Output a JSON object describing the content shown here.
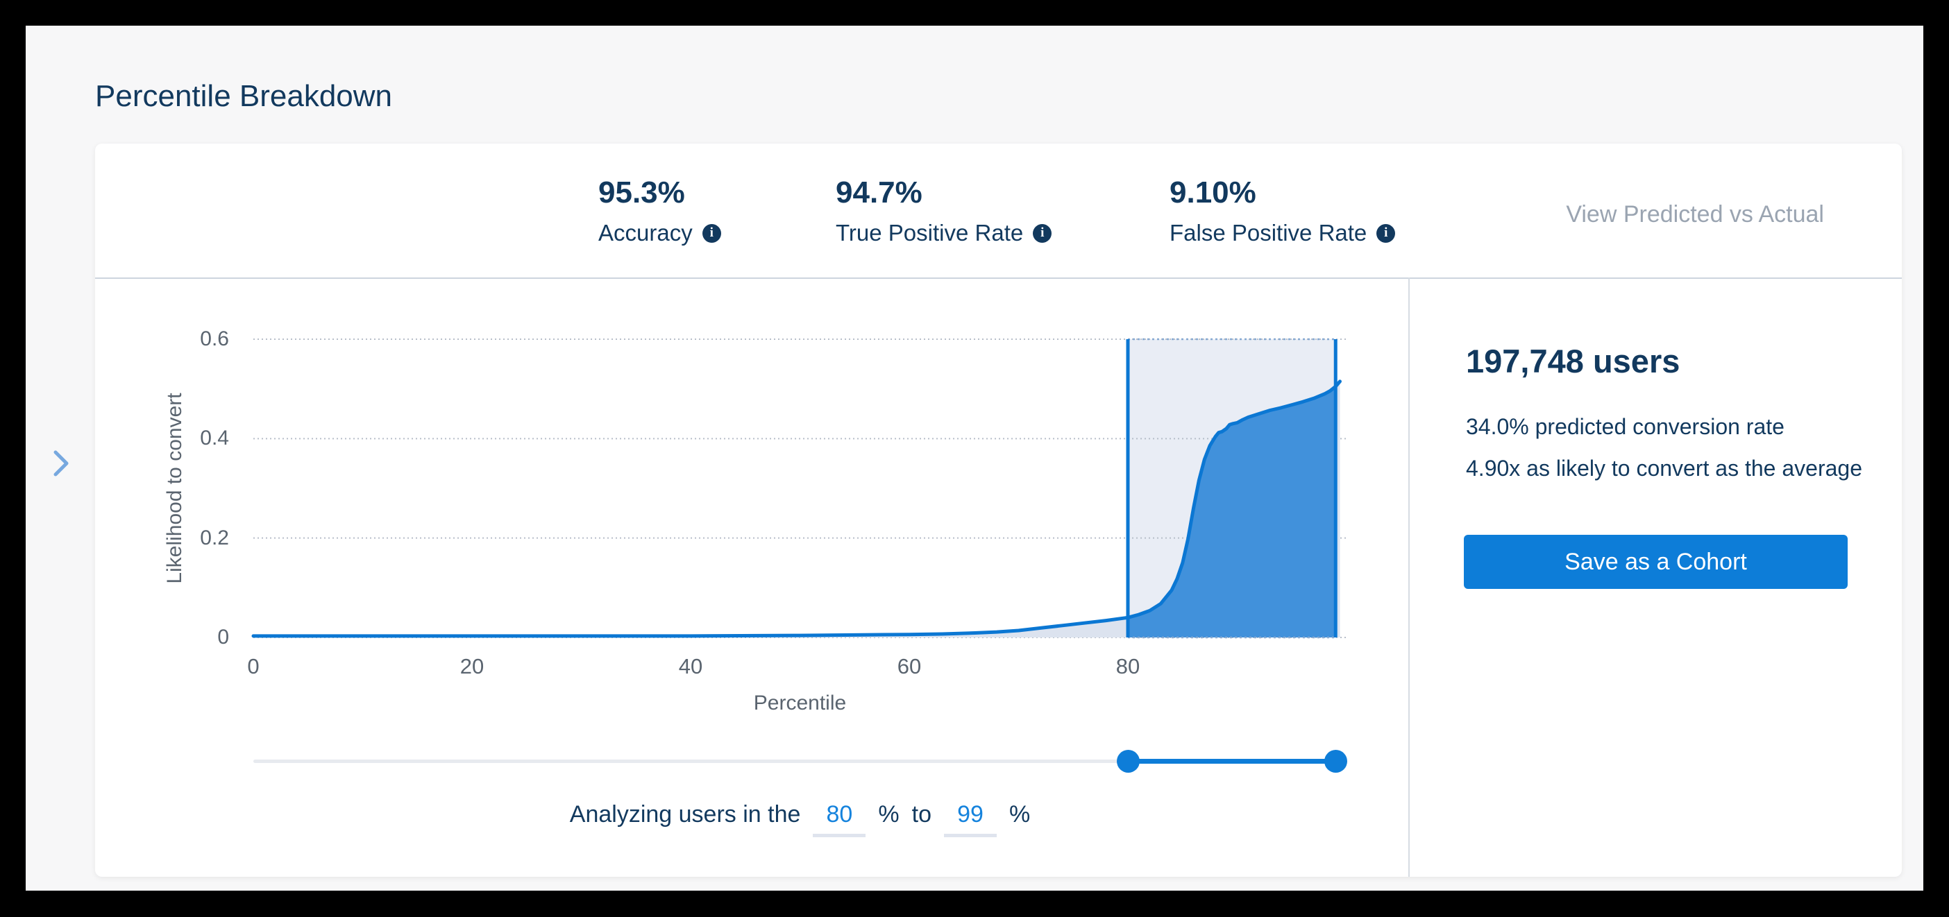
{
  "page": {
    "title": "Percentile Breakdown"
  },
  "stats": {
    "items": [
      {
        "value": "95.3%",
        "label": "Accuracy"
      },
      {
        "value": "94.7%",
        "label": "True Positive Rate"
      },
      {
        "value": "9.10%",
        "label": "False Positive Rate"
      }
    ],
    "info_glyph": "i",
    "view_link": "View Predicted vs Actual"
  },
  "chart_data": {
    "type": "area",
    "title": "",
    "xlabel": "Percentile",
    "ylabel": "Likelihood to convert",
    "xlim": [
      0,
      100
    ],
    "ylim": [
      0,
      0.6
    ],
    "x_ticks": [
      0,
      20,
      40,
      60,
      80
    ],
    "y_ticks": [
      0,
      0.2,
      0.4,
      0.6
    ],
    "grid": "dotted-horizontal",
    "selection": {
      "start": 80,
      "end": 99
    },
    "points": [
      [
        0,
        0.003
      ],
      [
        10,
        0.003
      ],
      [
        20,
        0.003
      ],
      [
        30,
        0.003
      ],
      [
        40,
        0.003
      ],
      [
        50,
        0.004
      ],
      [
        55,
        0.005
      ],
      [
        60,
        0.006
      ],
      [
        63,
        0.007
      ],
      [
        66,
        0.009
      ],
      [
        68,
        0.011
      ],
      [
        70,
        0.014
      ],
      [
        72,
        0.019
      ],
      [
        74,
        0.024
      ],
      [
        76,
        0.029
      ],
      [
        78,
        0.034
      ],
      [
        80,
        0.04
      ],
      [
        81,
        0.046
      ],
      [
        82,
        0.054
      ],
      [
        83,
        0.068
      ],
      [
        84,
        0.095
      ],
      [
        84.5,
        0.118
      ],
      [
        85,
        0.15
      ],
      [
        85.5,
        0.198
      ],
      [
        86,
        0.26
      ],
      [
        86.5,
        0.316
      ],
      [
        87,
        0.358
      ],
      [
        87.5,
        0.386
      ],
      [
        88,
        0.404
      ],
      [
        88.3,
        0.412
      ],
      [
        88.6,
        0.414
      ],
      [
        89,
        0.42
      ],
      [
        89.3,
        0.428
      ],
      [
        89.6,
        0.43
      ],
      [
        90,
        0.432
      ],
      [
        90.5,
        0.438
      ],
      [
        91,
        0.443
      ],
      [
        92,
        0.45
      ],
      [
        93,
        0.457
      ],
      [
        94,
        0.462
      ],
      [
        95,
        0.468
      ],
      [
        96,
        0.474
      ],
      [
        97,
        0.481
      ],
      [
        98,
        0.49
      ],
      [
        98.5,
        0.496
      ],
      [
        99,
        0.505
      ],
      [
        99.4,
        0.515
      ]
    ]
  },
  "slider": {
    "min": 0,
    "max": 100,
    "from": 80,
    "to": 99
  },
  "analyzing": {
    "prefix": "Analyzing users in the",
    "from": "80",
    "unit": "%",
    "connector": "to",
    "to": "99"
  },
  "summary": {
    "users": "197,748 users",
    "conversion": "34.0% predicted conversion rate",
    "lift": "4.90x as likely to convert as the average",
    "save_button": "Save as a Cohort"
  },
  "colors": {
    "navy_text": "#12395e",
    "axis_gray": "#5a646f",
    "muted_link": "#9aa4b1",
    "primary_blue": "#0d7dd8",
    "curve_stroke": "#0b77d3",
    "selection_area_fill": "#4191db",
    "area_fill_light": "#dce3ef",
    "selection_bg": "#e9edf5",
    "gridline": "#b7bec9",
    "selection_edge_dotted": "#86a9d2",
    "divider": "#cdd5de",
    "slider_track": "#e7eaef",
    "input_underline": "#dfe4ee",
    "panel_bg": "#f7f7f8",
    "chevron": "#77a8df"
  }
}
